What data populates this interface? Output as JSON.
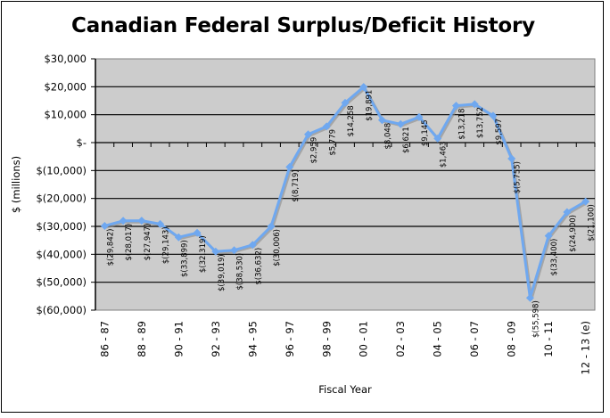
{
  "chart_data": {
    "type": "line",
    "title": "Canadian Federal Surplus/Deficit History",
    "xlabel": "Fiscal Year",
    "ylabel": "$ (millions)",
    "ylim": [
      -60000,
      30000
    ],
    "yticks": [
      30000,
      20000,
      10000,
      0,
      -10000,
      -20000,
      -30000,
      -40000,
      -50000,
      -60000
    ],
    "ytick_labels": [
      "$30,000",
      "$20,000",
      "$10,000",
      "$-",
      "$(10,000)",
      "$(20,000)",
      "$(30,000)",
      "$(40,000)",
      "$(50,000)",
      "$(60,000)"
    ],
    "grid": true,
    "legend": "none",
    "categories": [
      "86 - 87",
      "87 - 88",
      "88 - 89",
      "89 - 90",
      "90 - 91",
      "91 - 92",
      "92 - 93",
      "93 - 94",
      "94 - 95",
      "95 - 96",
      "96 - 97",
      "97 - 98",
      "98 - 99",
      "99 - 00",
      "00 - 01",
      "01 - 02",
      "02 - 03",
      "03 - 04",
      "04 - 05",
      "05 - 06",
      "06 - 07",
      "07 - 08",
      "08 - 09",
      "09 - 10",
      "10 - 11",
      "11 - 12",
      "12 - 13 (e)"
    ],
    "shown_category_labels": [
      "86 - 87",
      "88 - 89",
      "90 - 91",
      "92 - 93",
      "94 - 95",
      "96 - 97",
      "98 - 99",
      "00 - 01",
      "02 - 03",
      "04 - 05",
      "06 - 07",
      "08 - 09",
      "10 - 11",
      "12 - 13 (e)"
    ],
    "series": [
      {
        "name": "Surplus/Deficit",
        "color": "#6fa8f0",
        "values": [
          -29842,
          -28017,
          -27947,
          -29143,
          -33899,
          -32319,
          -39019,
          -38530,
          -36632,
          -30006,
          -8719,
          2959,
          5779,
          14258,
          19891,
          8048,
          6621,
          9145,
          1463,
          13218,
          13752,
          9597,
          -5755,
          -55598,
          -33400,
          -24900,
          -21100
        ],
        "data_labels": [
          "$(29,842)",
          "$(28,017)",
          "$(27,947)",
          "$(29,143)",
          "$(33,899)",
          "$(32,319)",
          "$(39,019)",
          "$(38,530)",
          "$(36,632)",
          "$(30,006)",
          "$(8,719)",
          "$2,959",
          "$5,779",
          "$14,258",
          "$19,891",
          "$8,048",
          "$6,621",
          "$9,145",
          "$1,463",
          "$13,218",
          "$13,752",
          "$9,597",
          "$(5,755)",
          "$(55,598)",
          "$(33,400)",
          "$(24,900)",
          "$(21,100)"
        ]
      }
    ],
    "colors": {
      "plot_background": "#cccccc",
      "gridline": "#000000",
      "line": "#6fa8f0",
      "shadow": "#8a8a8a"
    }
  }
}
